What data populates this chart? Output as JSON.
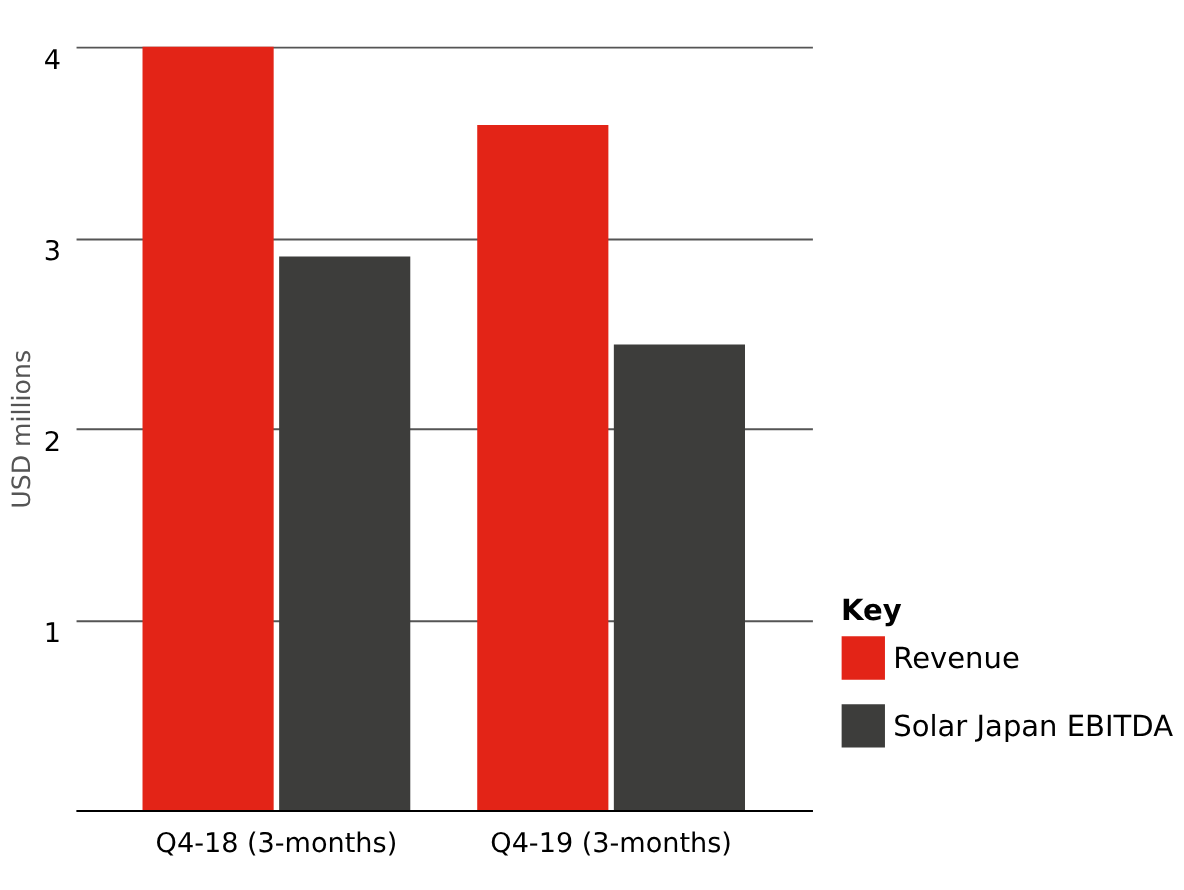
{
  "chart_data": {
    "type": "bar",
    "ylabel": "USD millions",
    "legend_title": "Key",
    "categories": [
      "Q4-18 (3-months)",
      "Q4-19 (3-months)"
    ],
    "series": [
      {
        "name": "Revenue",
        "color": "#e32417",
        "values": [
          4.0,
          3.59
        ]
      },
      {
        "name": "Solar Japan EBITDA",
        "color": "#3d3d3b",
        "values": [
          2.9,
          2.44
        ]
      }
    ],
    "ylim": [
      0,
      4
    ],
    "yticks": [
      {
        "value": 0,
        "label": null
      },
      1,
      2,
      3,
      4
    ],
    "grid": "y",
    "legend": "bottom right"
  }
}
